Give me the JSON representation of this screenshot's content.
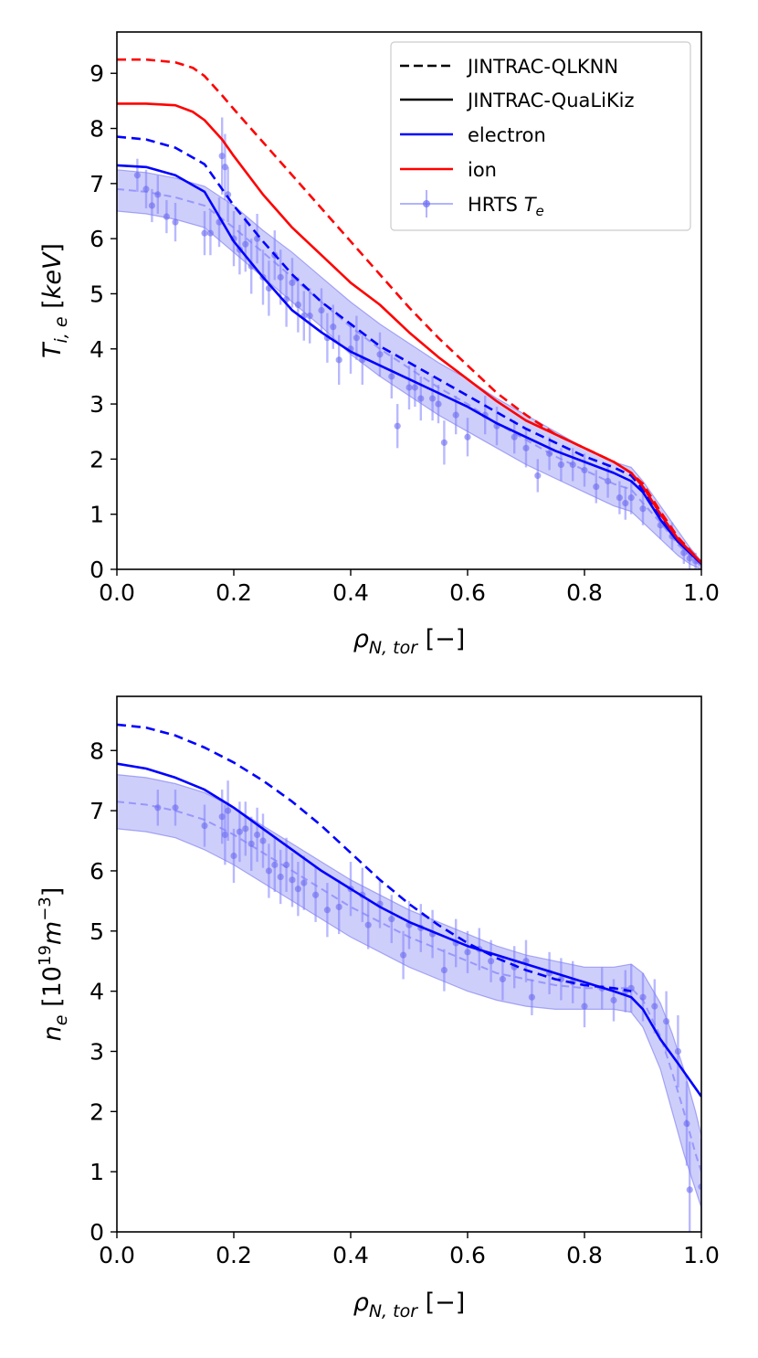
{
  "chart_data": [
    {
      "type": "line",
      "id": "top",
      "ylabel": "T_{i,e} [keV]",
      "xlabel": "ρ_{N,tor} [−]",
      "xlim": [
        0.0,
        1.0
      ],
      "ylim": [
        0,
        9.75
      ],
      "xticks": [
        "0.0",
        "0.2",
        "0.4",
        "0.6",
        "0.8",
        "1.0"
      ],
      "xtick_values": [
        0.0,
        0.2,
        0.4,
        0.6,
        0.8,
        1.0
      ],
      "yticks": [
        "0",
        "1",
        "2",
        "3",
        "4",
        "5",
        "6",
        "7",
        "8",
        "9"
      ],
      "ytick_values": [
        0,
        1,
        2,
        3,
        4,
        5,
        6,
        7,
        8,
        9
      ],
      "legend": {
        "placement": "top-right",
        "entries": [
          {
            "label": "JINTRAC-QLKNN",
            "style": "dashed",
            "color": "#000000"
          },
          {
            "label": "JINTRAC-QuaLiKiz",
            "style": "solid",
            "color": "#000000"
          },
          {
            "label": "electron",
            "style": "solid",
            "color": "#0000ff"
          },
          {
            "label": "ion",
            "style": "solid",
            "color": "#ff0000"
          },
          {
            "label": "HRTS ",
            "label_math": "T_e",
            "style": "errorbar",
            "color": "#8080ff"
          }
        ]
      },
      "band": {
        "name": "HRTS fit band",
        "color": "#6b6bf0",
        "x": [
          0,
          0.05,
          0.1,
          0.15,
          0.2,
          0.25,
          0.3,
          0.35,
          0.4,
          0.45,
          0.5,
          0.55,
          0.6,
          0.65,
          0.7,
          0.75,
          0.8,
          0.85,
          0.88,
          0.9,
          0.93,
          0.96,
          0.98,
          1.0
        ],
        "upper": [
          7.25,
          7.2,
          7.1,
          6.95,
          6.6,
          6.15,
          5.75,
          5.3,
          4.85,
          4.45,
          4.1,
          3.75,
          3.45,
          3.1,
          2.8,
          2.5,
          2.2,
          1.95,
          1.85,
          1.6,
          1.15,
          0.7,
          0.4,
          0.15
        ],
        "lower": [
          6.5,
          6.45,
          6.35,
          6.2,
          5.75,
          5.3,
          4.85,
          4.4,
          3.9,
          3.5,
          3.15,
          2.8,
          2.5,
          2.2,
          1.9,
          1.65,
          1.4,
          1.15,
          1.05,
          0.85,
          0.55,
          0.25,
          0.1,
          0.0
        ],
        "center": [
          6.9,
          6.85,
          6.75,
          6.6,
          6.2,
          5.75,
          5.3,
          4.85,
          4.4,
          4.0,
          3.65,
          3.3,
          3.0,
          2.65,
          2.35,
          2.05,
          1.8,
          1.55,
          1.45,
          1.2,
          0.85,
          0.45,
          0.25,
          0.05
        ]
      },
      "series": [
        {
          "name": "QuaLiKiz electron",
          "color": "#0000ff",
          "style": "solid",
          "x": [
            0,
            0.05,
            0.1,
            0.15,
            0.2,
            0.25,
            0.3,
            0.35,
            0.4,
            0.45,
            0.5,
            0.55,
            0.6,
            0.65,
            0.7,
            0.75,
            0.8,
            0.85,
            0.88,
            0.9,
            0.93,
            0.96,
            1.0
          ],
          "y": [
            7.33,
            7.3,
            7.15,
            6.85,
            5.95,
            5.3,
            4.7,
            4.3,
            3.95,
            3.7,
            3.45,
            3.2,
            2.95,
            2.65,
            2.4,
            2.15,
            1.95,
            1.75,
            1.6,
            1.4,
            0.9,
            0.5,
            0.1
          ]
        },
        {
          "name": "QLKNN electron",
          "color": "#0000ff",
          "style": "dashed",
          "x": [
            0,
            0.05,
            0.1,
            0.15,
            0.2,
            0.25,
            0.3,
            0.35,
            0.4,
            0.45,
            0.5,
            0.55,
            0.6,
            0.65,
            0.7,
            0.75,
            0.8,
            0.85,
            0.88,
            0.9,
            0.93,
            0.96,
            1.0
          ],
          "y": [
            7.85,
            7.8,
            7.65,
            7.35,
            6.6,
            5.95,
            5.35,
            4.85,
            4.45,
            4.05,
            3.75,
            3.45,
            3.15,
            2.85,
            2.55,
            2.3,
            2.05,
            1.85,
            1.7,
            1.45,
            0.95,
            0.5,
            0.12
          ]
        },
        {
          "name": "QuaLiKiz ion",
          "color": "#ff0000",
          "style": "solid",
          "x": [
            0,
            0.05,
            0.1,
            0.13,
            0.15,
            0.18,
            0.2,
            0.25,
            0.3,
            0.35,
            0.4,
            0.45,
            0.5,
            0.55,
            0.6,
            0.65,
            0.7,
            0.75,
            0.8,
            0.85,
            0.88,
            0.9,
            0.93,
            0.96,
            1.0
          ],
          "y": [
            8.45,
            8.45,
            8.42,
            8.3,
            8.15,
            7.8,
            7.5,
            6.8,
            6.2,
            5.7,
            5.2,
            4.8,
            4.3,
            3.85,
            3.45,
            3.05,
            2.7,
            2.45,
            2.2,
            1.95,
            1.75,
            1.5,
            1.0,
            0.55,
            0.12
          ]
        },
        {
          "name": "QLKNN ion",
          "color": "#ff0000",
          "style": "dashed",
          "x": [
            0,
            0.05,
            0.1,
            0.13,
            0.15,
            0.18,
            0.2,
            0.25,
            0.3,
            0.35,
            0.4,
            0.45,
            0.5,
            0.55,
            0.6,
            0.65,
            0.7,
            0.75,
            0.8,
            0.85,
            0.88,
            0.9,
            0.93,
            0.96,
            1.0
          ],
          "y": [
            9.25,
            9.25,
            9.2,
            9.1,
            8.95,
            8.6,
            8.35,
            7.75,
            7.15,
            6.55,
            5.95,
            5.35,
            4.75,
            4.2,
            3.7,
            3.2,
            2.8,
            2.45,
            2.2,
            1.95,
            1.75,
            1.55,
            1.05,
            0.58,
            0.12
          ]
        }
      ],
      "hrts_points": {
        "name": "HRTS T_e",
        "color": "#8080ff",
        "x": [
          0.035,
          0.05,
          0.06,
          0.07,
          0.085,
          0.1,
          0.15,
          0.16,
          0.175,
          0.18,
          0.185,
          0.19,
          0.2,
          0.21,
          0.22,
          0.23,
          0.24,
          0.25,
          0.26,
          0.27,
          0.28,
          0.29,
          0.3,
          0.31,
          0.32,
          0.33,
          0.35,
          0.36,
          0.37,
          0.38,
          0.4,
          0.41,
          0.42,
          0.45,
          0.47,
          0.48,
          0.5,
          0.51,
          0.52,
          0.54,
          0.55,
          0.56,
          0.58,
          0.6,
          0.63,
          0.65,
          0.68,
          0.7,
          0.72,
          0.74,
          0.76,
          0.78,
          0.8,
          0.82,
          0.84,
          0.86,
          0.87,
          0.88,
          0.9,
          0.93,
          0.95,
          0.97,
          0.98,
          0.99
        ],
        "y": [
          7.15,
          6.9,
          6.6,
          6.8,
          6.4,
          6.3,
          6.1,
          6.1,
          6.3,
          7.5,
          7.3,
          6.8,
          6.0,
          5.8,
          5.9,
          5.5,
          6.0,
          5.3,
          5.1,
          5.7,
          5.3,
          4.9,
          5.2,
          4.8,
          4.6,
          4.6,
          4.7,
          4.2,
          4.4,
          3.8,
          4.0,
          4.2,
          3.8,
          3.9,
          3.5,
          2.6,
          3.3,
          3.3,
          3.1,
          3.1,
          3.0,
          2.3,
          2.8,
          2.4,
          2.8,
          2.6,
          2.4,
          2.2,
          1.7,
          2.1,
          1.9,
          1.9,
          1.8,
          1.5,
          1.6,
          1.3,
          1.2,
          1.3,
          1.1,
          0.8,
          0.6,
          0.3,
          0.2,
          0.15
        ],
        "yerr": [
          0.3,
          0.35,
          0.3,
          0.35,
          0.3,
          0.35,
          0.4,
          0.4,
          0.45,
          0.7,
          0.6,
          0.5,
          0.5,
          0.45,
          0.5,
          0.5,
          0.45,
          0.5,
          0.5,
          0.45,
          0.5,
          0.5,
          0.45,
          0.5,
          0.45,
          0.5,
          0.4,
          0.45,
          0.4,
          0.45,
          0.45,
          0.4,
          0.45,
          0.4,
          0.4,
          0.4,
          0.4,
          0.35,
          0.4,
          0.4,
          0.35,
          0.4,
          0.35,
          0.35,
          0.35,
          0.35,
          0.3,
          0.35,
          0.3,
          0.3,
          0.3,
          0.3,
          0.3,
          0.3,
          0.3,
          0.3,
          0.3,
          0.3,
          0.3,
          0.25,
          0.25,
          0.2,
          0.2,
          0.15
        ]
      }
    },
    {
      "type": "line",
      "id": "bottom",
      "ylabel": "n_e [10^{19} m^{-3}]",
      "xlabel": "ρ_{N,tor} [−]",
      "xlim": [
        0.0,
        1.0
      ],
      "ylim": [
        0,
        8.9
      ],
      "xticks": [
        "0.0",
        "0.2",
        "0.4",
        "0.6",
        "0.8",
        "1.0"
      ],
      "xtick_values": [
        0.0,
        0.2,
        0.4,
        0.6,
        0.8,
        1.0
      ],
      "yticks": [
        "0",
        "1",
        "2",
        "3",
        "4",
        "5",
        "6",
        "7",
        "8"
      ],
      "ytick_values": [
        0,
        1,
        2,
        3,
        4,
        5,
        6,
        7,
        8
      ],
      "band": {
        "name": "HRTS fit band",
        "color": "#6b6bf0",
        "x": [
          0,
          0.05,
          0.1,
          0.15,
          0.2,
          0.25,
          0.3,
          0.35,
          0.4,
          0.45,
          0.5,
          0.55,
          0.6,
          0.65,
          0.7,
          0.75,
          0.8,
          0.85,
          0.88,
          0.9,
          0.93,
          0.95,
          0.97,
          0.99,
          1.0
        ],
        "upper": [
          7.6,
          7.55,
          7.45,
          7.3,
          7.05,
          6.75,
          6.45,
          6.15,
          5.85,
          5.6,
          5.35,
          5.15,
          4.95,
          4.75,
          4.6,
          4.5,
          4.4,
          4.4,
          4.45,
          4.3,
          3.8,
          3.3,
          2.7,
          2.0,
          1.6
        ],
        "lower": [
          6.7,
          6.65,
          6.55,
          6.35,
          6.1,
          5.8,
          5.5,
          5.2,
          4.9,
          4.65,
          4.4,
          4.2,
          4.0,
          3.85,
          3.75,
          3.7,
          3.7,
          3.7,
          3.65,
          3.4,
          2.7,
          2.0,
          1.3,
          0.7,
          0.4
        ],
        "center": [
          7.15,
          7.1,
          7.0,
          6.85,
          6.6,
          6.3,
          6.0,
          5.7,
          5.4,
          5.15,
          4.9,
          4.7,
          4.5,
          4.3,
          4.2,
          4.1,
          4.05,
          4.05,
          4.05,
          3.85,
          3.25,
          2.65,
          2.0,
          1.3,
          1.0
        ]
      },
      "series": [
        {
          "name": "QuaLiKiz electron",
          "color": "#0000ff",
          "style": "solid",
          "x": [
            0,
            0.05,
            0.1,
            0.15,
            0.2,
            0.25,
            0.3,
            0.35,
            0.4,
            0.45,
            0.5,
            0.55,
            0.6,
            0.65,
            0.7,
            0.75,
            0.8,
            0.85,
            0.88,
            0.9,
            0.93,
            0.96,
            1.0
          ],
          "y": [
            7.78,
            7.7,
            7.55,
            7.35,
            7.05,
            6.7,
            6.35,
            6.0,
            5.7,
            5.4,
            5.15,
            4.95,
            4.75,
            4.6,
            4.45,
            4.3,
            4.15,
            4.0,
            3.9,
            3.7,
            3.2,
            2.8,
            2.25
          ]
        },
        {
          "name": "QLKNN electron",
          "color": "#0000ff",
          "style": "dashed",
          "x": [
            0,
            0.05,
            0.1,
            0.15,
            0.2,
            0.25,
            0.3,
            0.35,
            0.4,
            0.45,
            0.5,
            0.55,
            0.6,
            0.65,
            0.7,
            0.75,
            0.8,
            0.85,
            0.88
          ],
          "y": [
            8.43,
            8.38,
            8.25,
            8.05,
            7.8,
            7.5,
            7.15,
            6.75,
            6.3,
            5.85,
            5.45,
            5.1,
            4.8,
            4.55,
            4.35,
            4.2,
            4.1,
            4.05,
            4.0
          ]
        }
      ],
      "hrts_points": {
        "name": "HRTS n_e",
        "color": "#8080ff",
        "x": [
          0.07,
          0.1,
          0.15,
          0.18,
          0.185,
          0.19,
          0.2,
          0.21,
          0.22,
          0.23,
          0.24,
          0.25,
          0.26,
          0.27,
          0.28,
          0.29,
          0.3,
          0.31,
          0.32,
          0.34,
          0.36,
          0.38,
          0.4,
          0.42,
          0.43,
          0.45,
          0.47,
          0.49,
          0.5,
          0.52,
          0.54,
          0.56,
          0.58,
          0.6,
          0.62,
          0.64,
          0.66,
          0.68,
          0.7,
          0.71,
          0.74,
          0.76,
          0.78,
          0.8,
          0.83,
          0.85,
          0.87,
          0.88,
          0.9,
          0.92,
          0.94,
          0.96,
          0.975,
          0.98,
          1.0
        ],
        "y": [
          7.05,
          7.05,
          6.75,
          6.9,
          6.6,
          7.0,
          6.25,
          6.65,
          6.7,
          6.45,
          6.6,
          6.5,
          6.0,
          6.1,
          5.9,
          6.1,
          5.85,
          5.7,
          5.8,
          5.6,
          5.35,
          5.4,
          5.7,
          5.6,
          5.1,
          5.45,
          5.2,
          4.6,
          5.1,
          5.05,
          4.95,
          4.35,
          4.8,
          4.65,
          4.7,
          4.5,
          4.2,
          4.4,
          4.5,
          3.9,
          4.3,
          4.2,
          4.15,
          3.75,
          4.05,
          3.85,
          4.0,
          4.05,
          3.9,
          3.75,
          3.5,
          3.0,
          1.8,
          0.7,
          0.75
        ],
        "yerr": [
          0.3,
          0.3,
          0.35,
          0.45,
          0.5,
          0.5,
          0.45,
          0.5,
          0.45,
          0.45,
          0.45,
          0.45,
          0.45,
          0.45,
          0.45,
          0.45,
          0.45,
          0.45,
          0.45,
          0.45,
          0.45,
          0.45,
          0.45,
          0.45,
          0.4,
          0.4,
          0.4,
          0.4,
          0.4,
          0.4,
          0.4,
          0.35,
          0.4,
          0.35,
          0.35,
          0.35,
          0.35,
          0.35,
          0.35,
          0.3,
          0.35,
          0.35,
          0.35,
          0.35,
          0.35,
          0.35,
          0.35,
          0.4,
          0.4,
          0.45,
          0.5,
          0.6,
          0.7,
          0.8,
          0.8
        ]
      }
    }
  ]
}
